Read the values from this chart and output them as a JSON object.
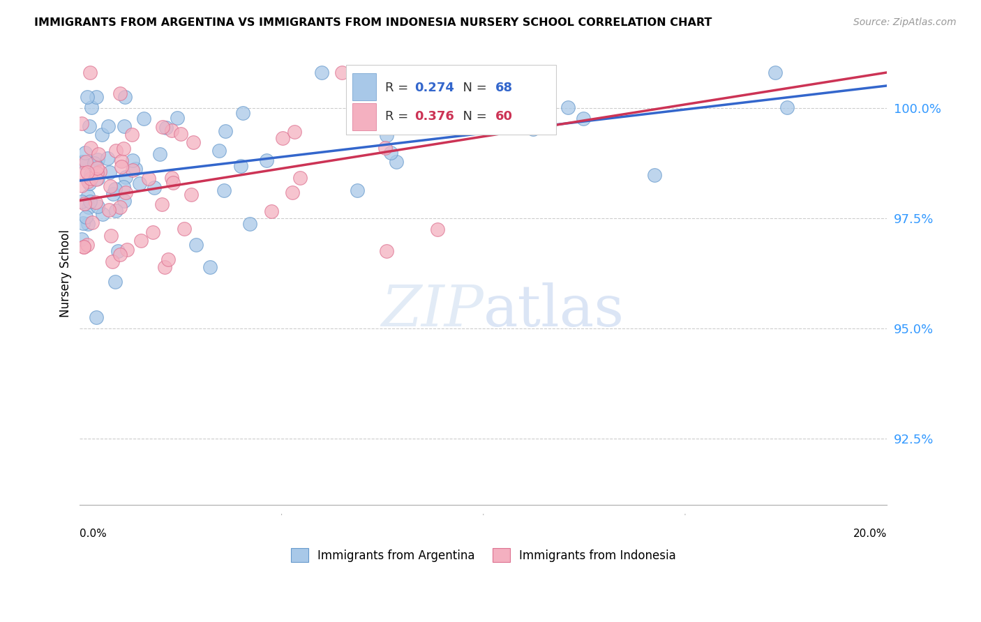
{
  "title": "IMMIGRANTS FROM ARGENTINA VS IMMIGRANTS FROM INDONESIA NURSERY SCHOOL CORRELATION CHART",
  "source": "Source: ZipAtlas.com",
  "ylabel": "Nursery School",
  "yticks": [
    92.5,
    95.0,
    97.5,
    100.0
  ],
  "ytick_labels": [
    "92.5%",
    "95.0%",
    "97.5%",
    "100.0%"
  ],
  "xmin": 0.0,
  "xmax": 20.0,
  "ymin": 91.0,
  "ymax": 101.5,
  "argentina_color": "#a8c8e8",
  "argentina_edge": "#6699cc",
  "indonesia_color": "#f4b0c0",
  "indonesia_edge": "#dd7090",
  "argentina_line_color": "#3366cc",
  "indonesia_line_color": "#cc3355",
  "argentina_R": 0.274,
  "argentina_N": 68,
  "indonesia_R": 0.376,
  "indonesia_N": 60,
  "legend_argentina": "Immigrants from Argentina",
  "legend_indonesia": "Immigrants from Indonesia",
  "watermark_zip": "ZIP",
  "watermark_atlas": "atlas",
  "background_color": "#ffffff",
  "grid_color": "#cccccc",
  "argentina_trend_x0": 0.0,
  "argentina_trend_y0": 98.35,
  "argentina_trend_x1": 20.0,
  "argentina_trend_y1": 100.5,
  "indonesia_trend_x0": 0.0,
  "indonesia_trend_y0": 97.9,
  "indonesia_trend_x1": 20.0,
  "indonesia_trend_y1": 100.8
}
